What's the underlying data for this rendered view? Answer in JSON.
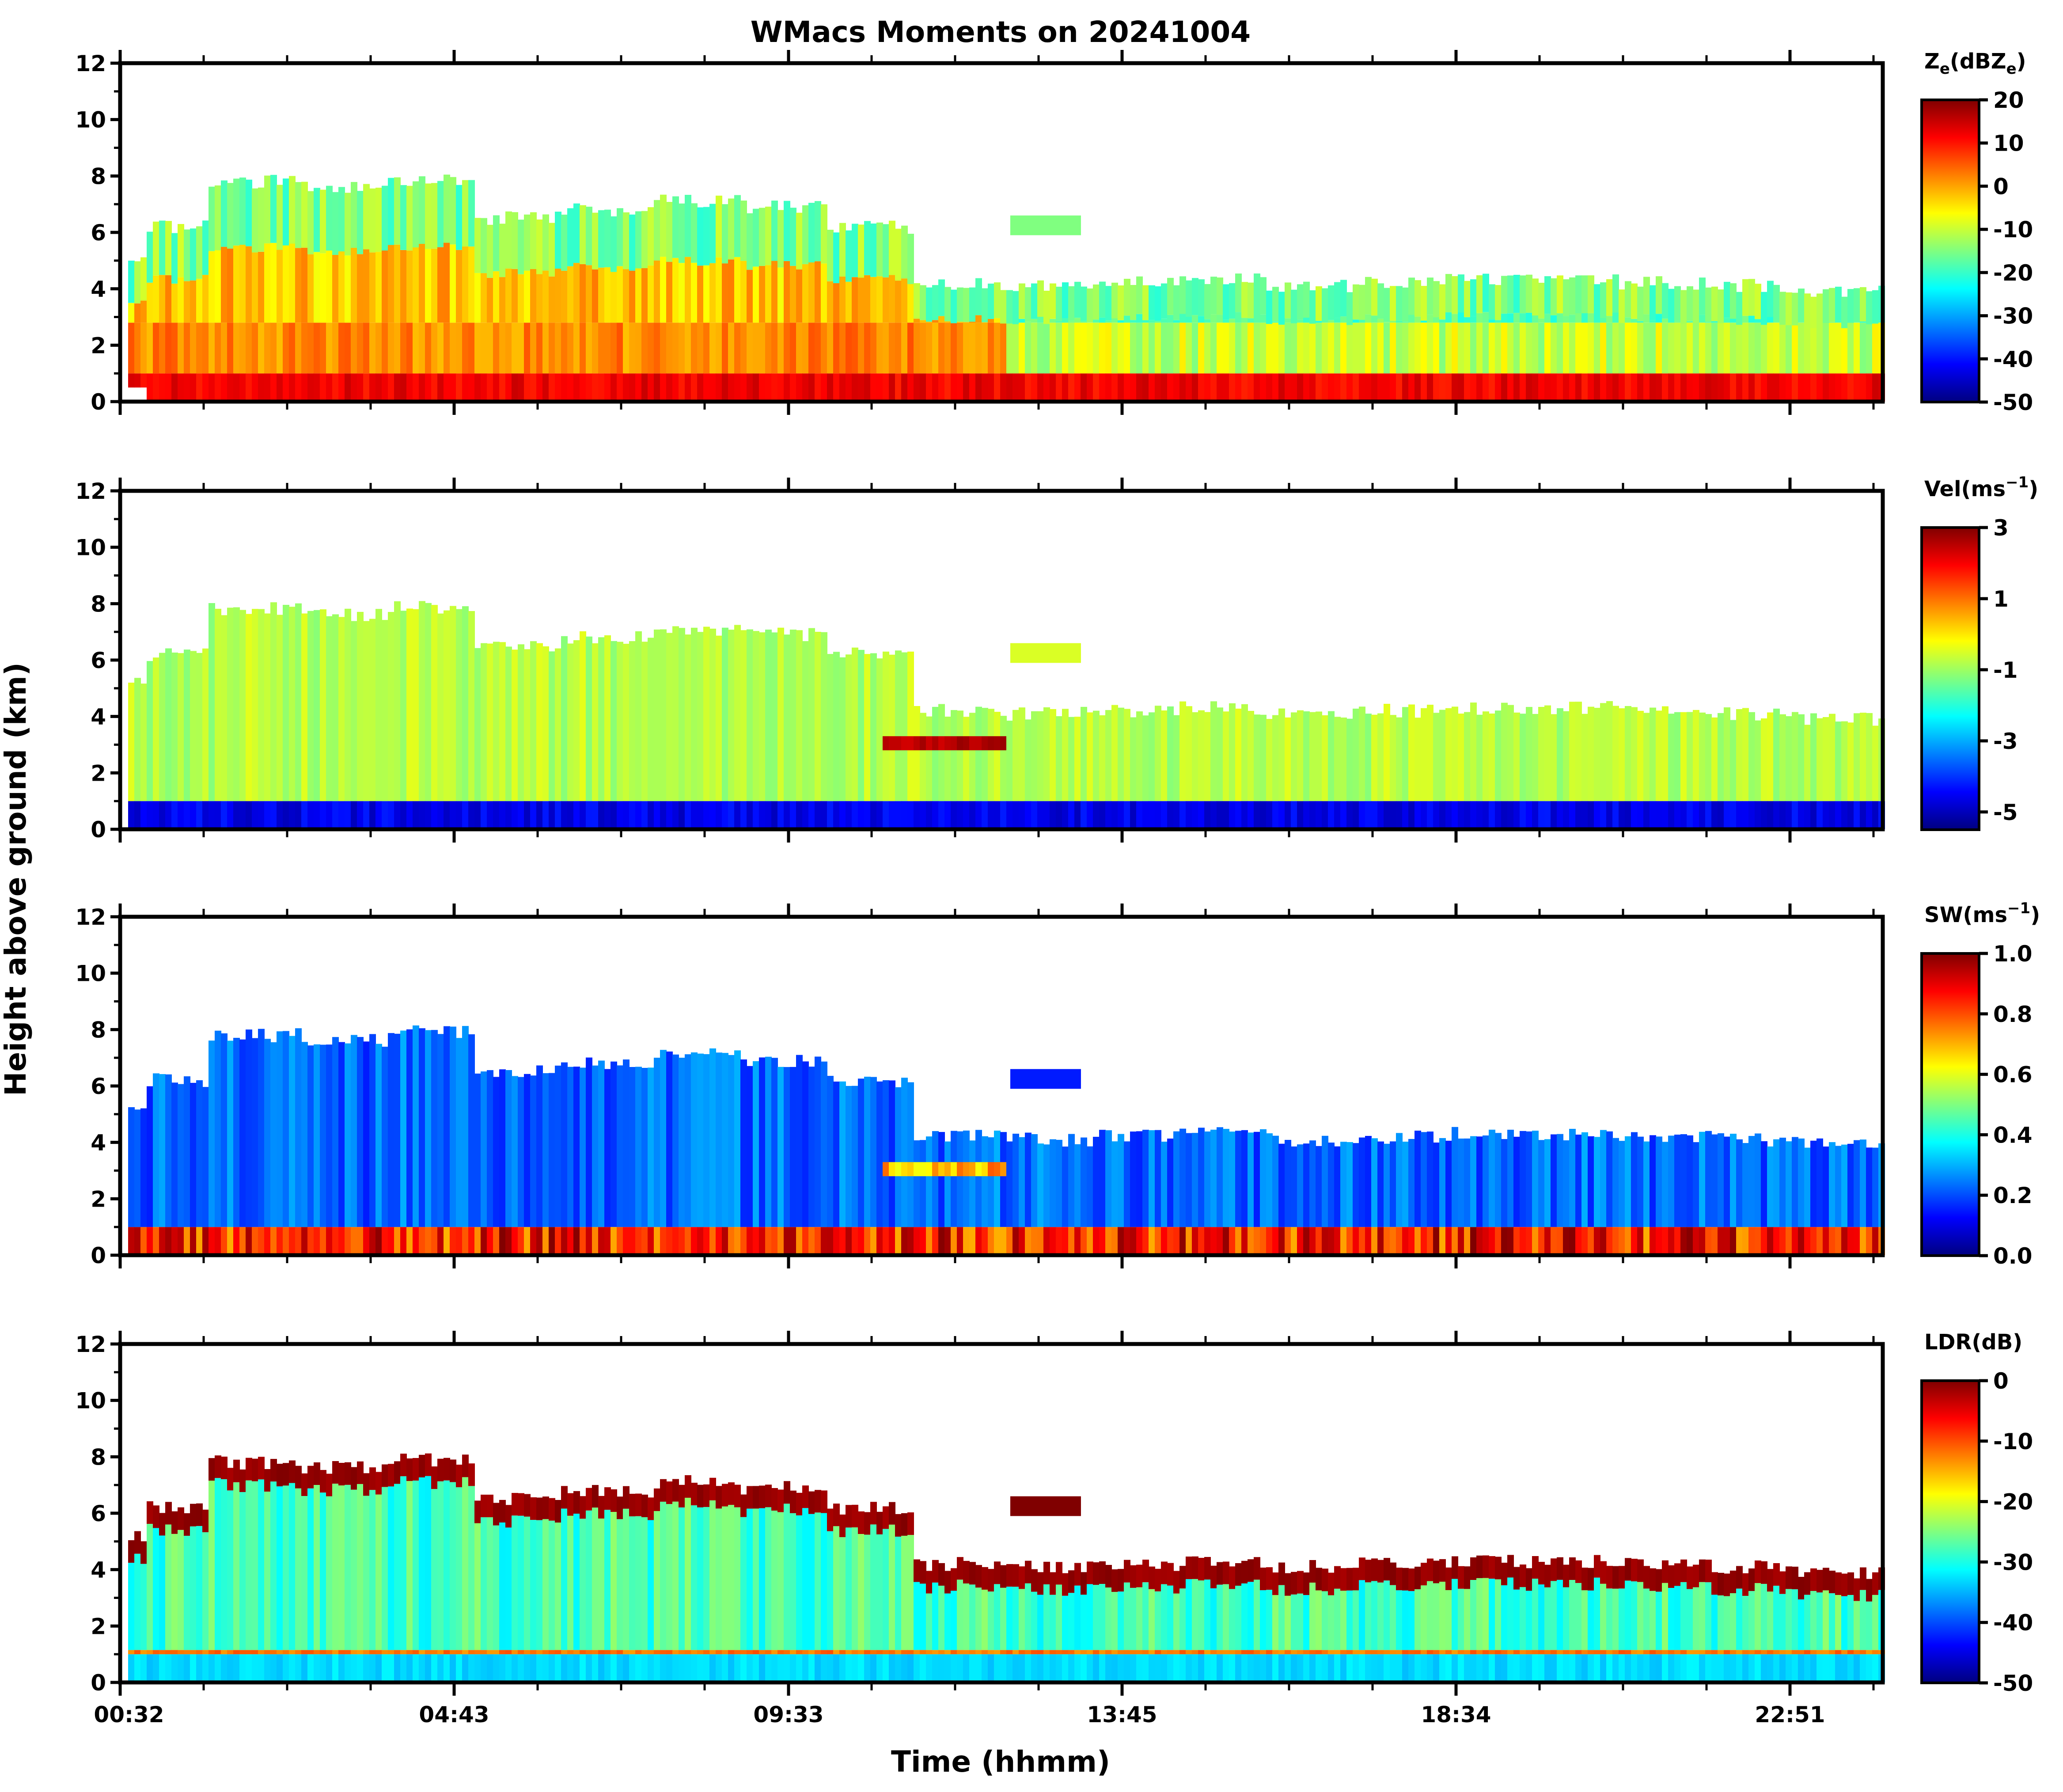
{
  "chart_data": {
    "type": "heatmap",
    "title": "WMacs Moments on 20241004",
    "xlabel": "Time (hhmm)",
    "ylabel": "Height above ground (km)",
    "x_tick_labels": [
      "00:32",
      "04:43",
      "09:33",
      "13:45",
      "18:34",
      "22:51"
    ],
    "panels": [
      {
        "name": "reflectivity",
        "colorbar_label_main": "Z",
        "colorbar_label_sub": "e",
        "colorbar_label_rest": "(dBZ",
        "colorbar_label_sub2": "e",
        "colorbar_label_end": ")",
        "clim": [
          -50,
          20
        ],
        "colorbar_ticks": [
          "20",
          "10",
          "0",
          "-10",
          "-20",
          "-30",
          "-40",
          "-50"
        ],
        "ylim": [
          0,
          12
        ],
        "y_ticks": [
          "0",
          "2",
          "4",
          "6",
          "8",
          "10",
          "12"
        ],
        "echo_top_km": [
          6.2,
          7.8,
          7.6,
          7.9,
          6.5,
          6.8,
          7.1,
          6.9,
          6.2,
          4.2,
          4.1,
          4.2,
          4.3,
          4.1,
          4.2,
          4.3,
          4.3,
          4.2,
          4.1,
          3.9
        ],
        "low_layer_value": 12,
        "mid_layer_value": 2,
        "upper_layer_value": -15
      },
      {
        "name": "velocity",
        "colorbar_label_main": "Vel(ms",
        "colorbar_label_sup": "−1",
        "colorbar_label_end": ")",
        "clim": [
          -5.5,
          3
        ],
        "colorbar_ticks": [
          "3",
          "1",
          "-1",
          "-3",
          "-5"
        ],
        "ylim": [
          0,
          12
        ],
        "y_ticks": [
          "0",
          "2",
          "4",
          "6",
          "8",
          "10",
          "12"
        ],
        "low_layer_value": -5,
        "cloud_value": -0.8,
        "patch_value": 2.8
      },
      {
        "name": "spectrum_width",
        "colorbar_label_main": "SW(ms",
        "colorbar_label_sup": "−1",
        "colorbar_label_end": ")",
        "clim": [
          0.0,
          1.0
        ],
        "colorbar_ticks": [
          "1.0",
          "0.8",
          "0.6",
          "0.4",
          "0.2",
          "0.0"
        ],
        "ylim": [
          0,
          12
        ],
        "y_ticks": [
          "0",
          "2",
          "4",
          "6",
          "8",
          "10",
          "12"
        ],
        "low_layer_value": 0.85,
        "cloud_value": 0.15
      },
      {
        "name": "ldr",
        "colorbar_label_main": "LDR(dB)",
        "clim": [
          -50,
          0
        ],
        "colorbar_ticks": [
          "0",
          "-10",
          "-20",
          "-30",
          "-40",
          "-50"
        ],
        "ylim": [
          0,
          12
        ],
        "y_ticks": [
          "0",
          "2",
          "4",
          "6",
          "8",
          "10",
          "12"
        ],
        "low_layer_value": -33,
        "melting_layer_value": -12,
        "cloud_value": -28,
        "cloud_top_value": 0
      }
    ],
    "colors": {
      "colormap": "jet",
      "jet_dark_blue": "#00007f",
      "jet_blue": "#0000ff",
      "jet_cyan": "#00ffff",
      "jet_yellow": "#ffff00",
      "jet_red": "#ff0000",
      "jet_dark_red": "#7f0000"
    }
  }
}
